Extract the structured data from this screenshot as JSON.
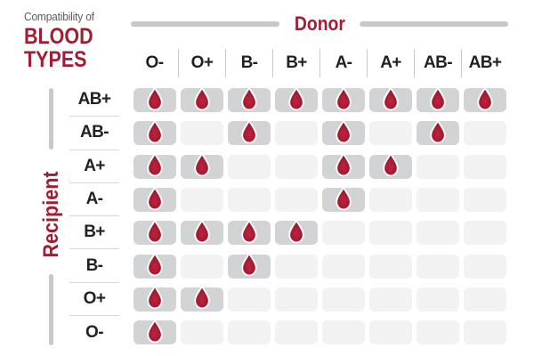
{
  "title": {
    "pretitle": "Compatibility of",
    "line1": "BLOOD",
    "line2": "TYPES"
  },
  "axes": {
    "donor_label": "Donor",
    "recipient_label": "Recipient"
  },
  "icons": {
    "compatible_marker": "blood-drop-icon"
  },
  "colors": {
    "brand_red": "#A11D33",
    "drop_red": "#A41A31",
    "drop_outline": "#FFFFFF",
    "compatible_pill_gray": "#D2D3D4",
    "incompatible_pill_gray": "#F2F2F3",
    "axis_line_gray": "#C7C8CA",
    "divider_gray": "#D7D8D9",
    "label_text": "#232021",
    "pretitle_text": "#595A5C"
  },
  "chart_data": {
    "type": "heatmap",
    "title": "Compatibility of Blood Types",
    "x_axis_label": "Donor",
    "y_axis_label": "Recipient",
    "columns": [
      "O-",
      "O+",
      "B-",
      "B+",
      "A-",
      "A+",
      "AB-",
      "AB+"
    ],
    "rows": [
      "AB+",
      "AB-",
      "A+",
      "A-",
      "B+",
      "B-",
      "O+",
      "O-"
    ],
    "cell_encoding": "1 = blood drop shown (compatible), 0 = empty pill (incompatible)",
    "compatible": [
      [
        1,
        1,
        1,
        1,
        1,
        1,
        1,
        1
      ],
      [
        1,
        0,
        1,
        0,
        1,
        0,
        1,
        0
      ],
      [
        1,
        1,
        0,
        0,
        1,
        1,
        0,
        0
      ],
      [
        1,
        0,
        0,
        0,
        1,
        0,
        0,
        0
      ],
      [
        1,
        1,
        1,
        1,
        0,
        0,
        0,
        0
      ],
      [
        1,
        0,
        1,
        0,
        0,
        0,
        0,
        0
      ],
      [
        1,
        1,
        0,
        0,
        0,
        0,
        0,
        0
      ],
      [
        1,
        0,
        0,
        0,
        0,
        0,
        0,
        0
      ]
    ]
  }
}
